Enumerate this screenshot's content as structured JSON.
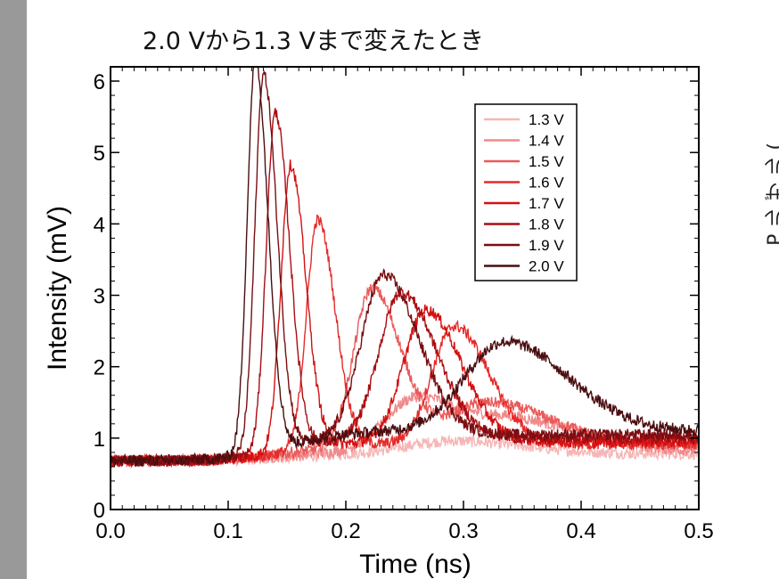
{
  "slide": {
    "title": "2.0 Vから1.3 Vまで変えたとき",
    "cut_label": "P  ル   ザ   ル  ("
  },
  "chart_data": {
    "type": "line",
    "title": "",
    "xlabel": "Time (ns)",
    "ylabel": "Intensity (mV)",
    "xlim": [
      0.0,
      0.5
    ],
    "ylim": [
      0,
      6.2
    ],
    "xticks": [
      "0.0",
      "0.1",
      "0.2",
      "0.3",
      "0.4",
      "0.5"
    ],
    "yticks": [
      "0",
      "1",
      "2",
      "3",
      "4",
      "5",
      "6"
    ],
    "grid": false,
    "legend_position": "top-right",
    "series": [
      {
        "name": "1.3 V",
        "color": "#f7b5b5",
        "baseline": 0.68,
        "tail": 0.78,
        "peaks": [
          {
            "t": 0.29,
            "h": 0.18,
            "w": 0.045
          }
        ]
      },
      {
        "name": "1.4 V",
        "color": "#f08a8a",
        "baseline": 0.68,
        "tail": 0.82,
        "peaks": [
          {
            "t": 0.26,
            "h": 0.75,
            "w": 0.03
          },
          {
            "t": 0.35,
            "h": 0.4,
            "w": 0.04
          }
        ]
      },
      {
        "name": "1.5 V",
        "color": "#ea5a5a",
        "baseline": 0.68,
        "tail": 0.9,
        "peaks": [
          {
            "t": 0.222,
            "h": 2.2,
            "w": 0.018
          },
          {
            "t": 0.32,
            "h": 0.6,
            "w": 0.04
          }
        ]
      },
      {
        "name": "1.6 V",
        "color": "#e52b2b",
        "baseline": 0.68,
        "tail": 0.92,
        "peaks": [
          {
            "t": 0.176,
            "h": 3.2,
            "w": 0.011
          },
          {
            "t": 0.292,
            "h": 1.65,
            "w": 0.022
          }
        ]
      },
      {
        "name": "1.7 V",
        "color": "#d41010",
        "baseline": 0.68,
        "tail": 0.95,
        "peaks": [
          {
            "t": 0.153,
            "h": 4.0,
            "w": 0.0095
          },
          {
            "t": 0.268,
            "h": 1.85,
            "w": 0.022
          }
        ]
      },
      {
        "name": "1.8 V",
        "color": "#a80d12",
        "baseline": 0.68,
        "tail": 1.0,
        "peaks": [
          {
            "t": 0.14,
            "h": 4.75,
            "w": 0.009
          },
          {
            "t": 0.247,
            "h": 2.05,
            "w": 0.022
          }
        ]
      },
      {
        "name": "1.9 V",
        "color": "#7a0e12",
        "baseline": 0.68,
        "tail": 1.05,
        "peaks": [
          {
            "t": 0.13,
            "h": 5.3,
            "w": 0.0085
          },
          {
            "t": 0.232,
            "h": 2.25,
            "w": 0.022
          }
        ]
      },
      {
        "name": "2.0 V",
        "color": "#4a0e10",
        "baseline": 0.68,
        "tail": 1.1,
        "peaks": [
          {
            "t": 0.123,
            "h": 5.5,
            "w": 0.008
          },
          {
            "t": 0.335,
            "h": 1.25,
            "w": 0.04
          }
        ]
      }
    ]
  }
}
